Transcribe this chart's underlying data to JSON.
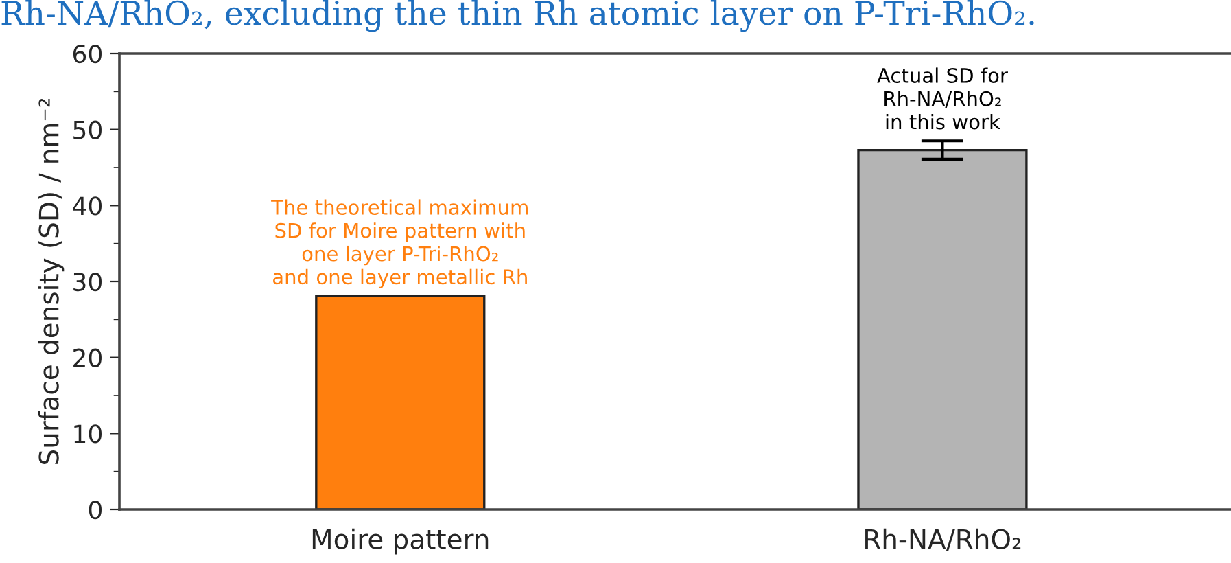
{
  "chart_data": {
    "type": "bar",
    "title": "Rh-NA/RhO₂, excluding the thin Rh atomic layer on P-Tri-RhO₂.",
    "ylabel": "Surface density (SD) / nm⁻²",
    "categories": [
      "Moire pattern",
      "Rh-NA/RhO₂"
    ],
    "values": [
      28.1,
      47.3
    ],
    "errors": [
      null,
      1.2
    ],
    "colors": [
      "#ff7f0e",
      "#b4b4b4"
    ],
    "ylim": [
      0,
      60
    ],
    "yticks": [
      0,
      10,
      20,
      30,
      40,
      50,
      60
    ],
    "grid": false,
    "legend": false,
    "annotations": [
      {
        "text": "The theoretical maximum\nSD for Moire pattern with\none layer P-Tri-RhO₂\nand one layer metallic Rh",
        "x": "Moire pattern",
        "y": 28.1
      },
      {
        "text": "Actual SD for\nRh-NA/RhO₂\nin this work",
        "x": "Rh-NA/RhO₂",
        "y": 48.5
      }
    ]
  }
}
